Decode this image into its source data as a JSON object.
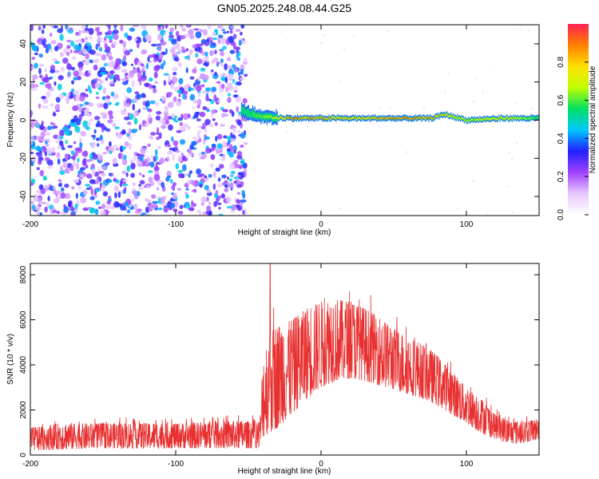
{
  "title": "GN05.2025.248.08.44.G25",
  "chart_data": [
    {
      "type": "heatmap",
      "xlabel": "Height of straight line (km)",
      "ylabel": "Frequency (Hz)",
      "xlim": [
        -200,
        150
      ],
      "ylim": [
        -50,
        50
      ],
      "xticks": [
        -200,
        -100,
        0,
        100
      ],
      "yticks": [
        -40,
        -20,
        0,
        20,
        40
      ],
      "colorbar": {
        "label": "Normalized spectral amplitude",
        "range": [
          0,
          1
        ],
        "ticks": [
          "0.0",
          "0.2",
          "0.4",
          "0.6",
          "0.8"
        ],
        "tick_values": [
          0.0,
          0.2,
          0.4,
          0.6,
          0.8
        ],
        "colors": [
          "#ffffff",
          "#e8c8ff",
          "#a040ff",
          "#2020ff",
          "#00c8ff",
          "#00e060",
          "#c0ff00",
          "#ffe000",
          "#ff8000",
          "#ff2050"
        ]
      },
      "noise_region_x": [
        -200,
        -55
      ],
      "ridge": [
        {
          "x": -55,
          "f": 5,
          "amp": 0.55
        },
        {
          "x": -45,
          "f": 2.5,
          "amp": 0.65
        },
        {
          "x": -35,
          "f": 1.5,
          "amp": 0.75
        },
        {
          "x": -20,
          "f": 1,
          "amp": 0.95
        },
        {
          "x": 0,
          "f": 1,
          "amp": 0.9
        },
        {
          "x": 25,
          "f": 1,
          "amp": 0.85
        },
        {
          "x": 50,
          "f": 1,
          "amp": 0.95
        },
        {
          "x": 75,
          "f": 1,
          "amp": 0.9
        },
        {
          "x": 85,
          "f": 3,
          "amp": 0.85
        },
        {
          "x": 100,
          "f": 0,
          "amp": 0.7
        },
        {
          "x": 125,
          "f": 1,
          "amp": 0.8
        },
        {
          "x": 150,
          "f": 1,
          "amp": 0.6
        }
      ]
    },
    {
      "type": "line",
      "xlabel": "Height of straight line (km)",
      "ylabel": "SNR (10 * v/v)",
      "xlim": [
        -200,
        150
      ],
      "ylim": [
        0,
        8500
      ],
      "xticks": [
        -200,
        -100,
        0,
        100
      ],
      "yticks": [
        0,
        2000,
        4000,
        6000,
        8000
      ],
      "color": "#e83030",
      "envelope": {
        "x": [
          -200,
          -180,
          -150,
          -100,
          -60,
          -42,
          -40,
          -35,
          -30,
          -20,
          -10,
          0,
          10,
          20,
          30,
          40,
          50,
          60,
          70,
          80,
          90,
          100,
          110,
          120,
          130,
          140,
          150
        ],
        "low": [
          200,
          250,
          300,
          300,
          300,
          300,
          800,
          1000,
          1200,
          1800,
          2500,
          3000,
          3300,
          3400,
          3300,
          3100,
          2900,
          2700,
          2500,
          2200,
          1800,
          1400,
          1000,
          700,
          500,
          550,
          700
        ],
        "high": [
          1200,
          1400,
          1400,
          1400,
          1500,
          1500,
          4300,
          5500,
          5700,
          6000,
          6500,
          6800,
          6900,
          6800,
          6500,
          6100,
          5600,
          5200,
          4900,
          4400,
          3700,
          3000,
          2500,
          1800,
          1500,
          1500,
          1600
        ]
      },
      "spike": {
        "x": -35,
        "y": 8500
      }
    }
  ]
}
